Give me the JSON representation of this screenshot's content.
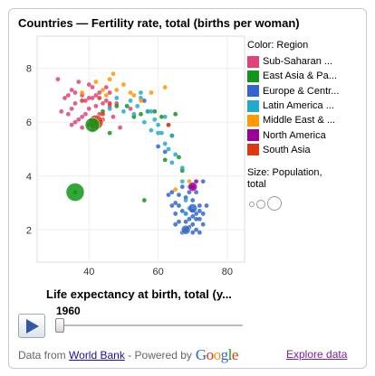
{
  "title": "Countries — Fertility rate, total (births per woman)",
  "legend": {
    "color_heading": "Color: Region",
    "regions": [
      {
        "label": "Sub-Saharan ...",
        "color": "#dd4477"
      },
      {
        "label": "East Asia & Pa...",
        "color": "#109618"
      },
      {
        "label": "Europe & Centr...",
        "color": "#3366cc"
      },
      {
        "label": "Latin America ...",
        "color": "#22aacc"
      },
      {
        "label": "Middle East & ...",
        "color": "#ff9900"
      },
      {
        "label": "North America",
        "color": "#990099"
      },
      {
        "label": "South Asia",
        "color": "#dc3912"
      }
    ],
    "size_heading_line1": "Size: Population,",
    "size_heading_line2": "total"
  },
  "controls": {
    "xlabel": "Life expectancy at birth, total (y...",
    "year": "1960"
  },
  "footer": {
    "prefix": "Data from",
    "link": "World Bank",
    "powered": "- Powered by",
    "google": [
      "G",
      "o",
      "o",
      "g",
      "l",
      "e"
    ],
    "google_colors": [
      "#3366cc",
      "#dc3912",
      "#ff9900",
      "#3366cc",
      "#109618",
      "#dc3912"
    ],
    "explore": "Explore data"
  },
  "chart_data": {
    "type": "scatter",
    "title": "Countries — Fertility rate, total (births per woman)",
    "xlabel": "Life expectancy at birth, total (y...",
    "ylabel": "",
    "xlim": [
      25,
      85
    ],
    "ylim": [
      0.8,
      9.2
    ],
    "xticks": [
      40,
      60,
      80
    ],
    "yticks": [
      2,
      4,
      6,
      8
    ],
    "grid": true,
    "legend_position": "right",
    "series": [
      {
        "name": "Sub-Saharan ...",
        "color": "#dd4477",
        "points": [
          [
            31,
            7.6
          ],
          [
            32,
            6.4
          ],
          [
            33,
            6.9
          ],
          [
            34,
            7.0
          ],
          [
            35,
            7.2
          ],
          [
            35,
            6.5
          ],
          [
            36,
            7.1
          ],
          [
            36,
            6.7
          ],
          [
            37,
            7.5
          ],
          [
            38,
            7.0
          ],
          [
            38,
            6.2
          ],
          [
            39,
            6.8
          ],
          [
            40,
            7.4
          ],
          [
            40,
            6.5
          ],
          [
            41,
            6.9
          ],
          [
            41,
            7.3
          ],
          [
            42,
            6.6
          ],
          [
            42,
            7.0
          ],
          [
            43,
            7.1
          ],
          [
            43,
            6.3
          ],
          [
            44,
            6.7
          ],
          [
            45,
            7.3
          ],
          [
            45,
            6.8
          ],
          [
            46,
            6.6
          ],
          [
            47,
            6.2
          ],
          [
            48,
            6.7
          ],
          [
            38,
            5.8
          ],
          [
            36,
            6.0
          ],
          [
            34,
            6.3
          ],
          [
            37,
            6.1
          ],
          [
            39,
            6.3
          ],
          [
            46,
            7.1
          ],
          [
            41,
            5.7
          ],
          [
            44,
            6.1
          ],
          [
            40,
            6.9
          ],
          [
            49,
            5.8
          ],
          [
            52,
            6.5
          ],
          [
            35,
            5.9
          ]
        ]
      },
      {
        "name": "East Asia & Pa...",
        "color": "#109618",
        "points": [
          [
            36,
            3.4
          ],
          [
            41,
            5.9
          ],
          [
            43,
            6.0
          ],
          [
            46,
            5.6
          ],
          [
            48,
            6.6
          ],
          [
            51,
            6.6
          ],
          [
            53,
            6.2
          ],
          [
            55,
            6.3
          ],
          [
            57,
            6.4
          ],
          [
            59,
            6.4
          ],
          [
            61,
            6.2
          ],
          [
            64,
            5.5
          ],
          [
            65,
            6.3
          ],
          [
            66,
            4.7
          ],
          [
            67,
            4.2
          ],
          [
            68,
            2.0
          ],
          [
            62,
            4.6
          ],
          [
            44,
            6.4
          ],
          [
            56,
            3.1
          ]
        ]
      },
      {
        "name": "Europe & Centr...",
        "color": "#3366cc",
        "points": [
          [
            56,
            6.8
          ],
          [
            60,
            5.1
          ],
          [
            62,
            4.9
          ],
          [
            63,
            3.3
          ],
          [
            64,
            3.4
          ],
          [
            64,
            2.9
          ],
          [
            65,
            3.0
          ],
          [
            65,
            2.6
          ],
          [
            66,
            2.9
          ],
          [
            66,
            2.3
          ],
          [
            67,
            2.7
          ],
          [
            67,
            3.6
          ],
          [
            68,
            2.6
          ],
          [
            68,
            2.3
          ],
          [
            68,
            3.2
          ],
          [
            69,
            2.8
          ],
          [
            69,
            2.4
          ],
          [
            69,
            2.1
          ],
          [
            69,
            3.4
          ],
          [
            70,
            2.7
          ],
          [
            70,
            2.5
          ],
          [
            70,
            2.2
          ],
          [
            70,
            3.1
          ],
          [
            71,
            2.6
          ],
          [
            71,
            2.4
          ],
          [
            71,
            2.0
          ],
          [
            72,
            2.9
          ],
          [
            72,
            2.7
          ],
          [
            72,
            2.4
          ],
          [
            73,
            2.6
          ],
          [
            73,
            2.2
          ],
          [
            74,
            2.9
          ],
          [
            73,
            3.8
          ],
          [
            72,
            1.9
          ],
          [
            70,
            1.9
          ],
          [
            66,
            3.3
          ],
          [
            71,
            3.4
          ],
          [
            65,
            2.2
          ],
          [
            67,
            1.9
          ]
        ]
      },
      {
        "name": "Latin America ...",
        "color": "#22aacc",
        "points": [
          [
            46,
            6.5
          ],
          [
            48,
            6.9
          ],
          [
            50,
            6.4
          ],
          [
            52,
            6.8
          ],
          [
            53,
            6.3
          ],
          [
            54,
            6.6
          ],
          [
            55,
            6.9
          ],
          [
            56,
            6.0
          ],
          [
            57,
            6.4
          ],
          [
            58,
            5.7
          ],
          [
            58,
            6.4
          ],
          [
            59,
            6.1
          ],
          [
            60,
            5.6
          ],
          [
            60,
            5.9
          ],
          [
            61,
            5.6
          ],
          [
            62,
            5.2
          ],
          [
            63,
            5.0
          ],
          [
            64,
            5.5
          ],
          [
            64,
            4.5
          ],
          [
            65,
            4.8
          ],
          [
            67,
            4.3
          ],
          [
            67,
            3.8
          ],
          [
            68,
            3.1
          ],
          [
            69,
            3.6
          ],
          [
            62,
            6.2
          ],
          [
            55,
            7.1
          ],
          [
            63,
            5.9
          ],
          [
            68,
            2.6
          ]
        ]
      },
      {
        "name": "Middle East & ...",
        "color": "#ff9900",
        "points": [
          [
            38,
            7.1
          ],
          [
            42,
            7.5
          ],
          [
            44,
            7.2
          ],
          [
            45,
            7.0
          ],
          [
            46,
            7.6
          ],
          [
            48,
            7.2
          ],
          [
            50,
            7.4
          ],
          [
            52,
            7.1
          ],
          [
            53,
            7.0
          ],
          [
            55,
            6.8
          ],
          [
            58,
            7.1
          ],
          [
            62,
            7.3
          ],
          [
            65,
            3.5
          ],
          [
            47,
            7.8
          ],
          [
            69,
            3.8
          ]
        ]
      },
      {
        "name": "North America",
        "color": "#990099",
        "points": [
          [
            70,
            3.6
          ],
          [
            71,
            3.8
          ]
        ]
      },
      {
        "name": "South Asia",
        "color": "#dc3912",
        "points": [
          [
            42,
            6.0
          ],
          [
            44,
            6.3
          ],
          [
            38,
            6.8
          ],
          [
            43,
            6.9
          ],
          [
            46,
            6.7
          ],
          [
            63,
            5.9
          ],
          [
            40,
            5.9
          ]
        ]
      }
    ],
    "bubble_sizes": [
      {
        "region": "East Asia & Pa...",
        "x": 36,
        "y": 3.4,
        "size": "largest"
      },
      {
        "region": "South Asia",
        "x": 42,
        "y": 6.0,
        "size": "large"
      },
      {
        "region": "East Asia & Pa...",
        "x": 41,
        "y": 5.9,
        "size": "large"
      },
      {
        "region": "North America",
        "x": 70,
        "y": 3.6,
        "size": "medium"
      },
      {
        "region": "Europe & Centr...",
        "x": 68,
        "y": 2.0,
        "size": "medium"
      },
      {
        "region": "Europe & Centr...",
        "x": 70,
        "y": 2.8,
        "size": "medium"
      }
    ]
  }
}
